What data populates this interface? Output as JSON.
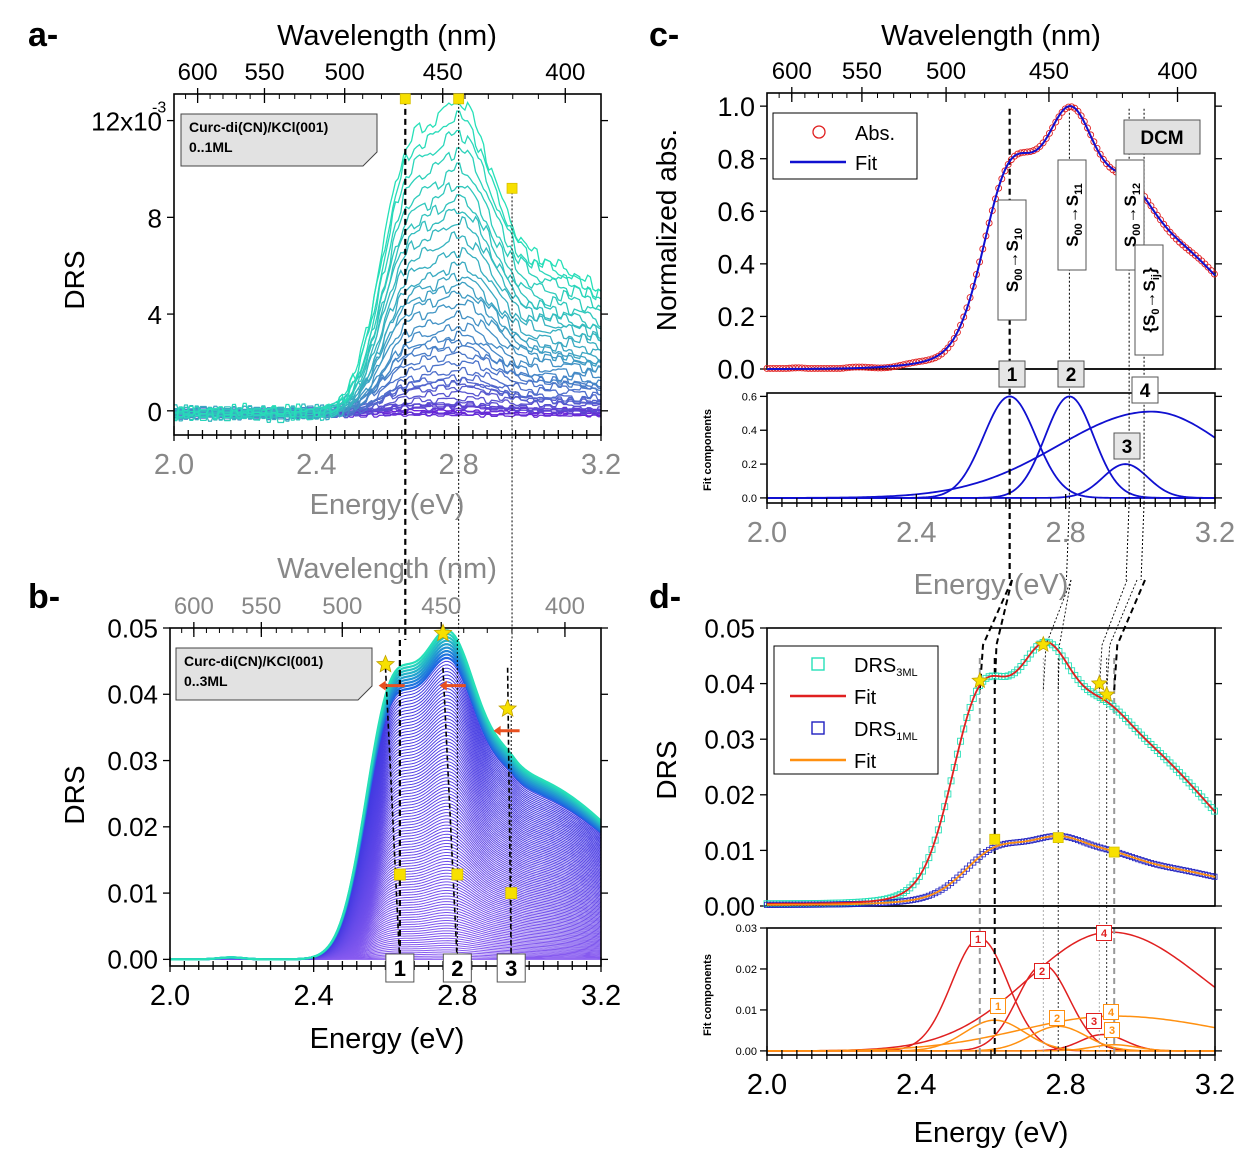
{
  "chart_data": [
    {
      "panel": "a",
      "panel_label": "a-",
      "type": "line",
      "top_axis": {
        "label": "Wavelength (nm)",
        "ticks": [
          600,
          550,
          500,
          450,
          400
        ]
      },
      "xlabel": "Energy (eV)",
      "ylabel": "DRS",
      "xlim": [
        2.0,
        3.2
      ],
      "ylim": [
        -0.001,
        0.0131
      ],
      "xticks": [
        "2.0",
        "2.4",
        "2.8",
        "3.2"
      ],
      "yticks": [
        {
          "v": 0,
          "label": "0"
        },
        {
          "v": 0.004,
          "label": "4"
        },
        {
          "v": 0.008,
          "label": "8"
        },
        {
          "v": 0.012,
          "label": "12x10"
        }
      ],
      "y_exponent": "-3",
      "legend_box": {
        "line1": "Curc-di(CN)/KCl(001)",
        "line2": "0..1ML"
      },
      "series_count": 40,
      "top_curve_peaks": [
        {
          "x": 2.65,
          "y": 0.0129
        },
        {
          "x": 2.8,
          "y": 0.0129
        },
        {
          "x": 2.95,
          "y": 0.0092
        }
      ],
      "marker_color": "#f7e000",
      "colors": {
        "low": "#6a1fd8",
        "high": "#26e0b8"
      }
    },
    {
      "panel": "b",
      "panel_label": "b-",
      "type": "line",
      "top_axis": {
        "label": "Wavelength (nm)",
        "ticks": [
          600,
          550,
          500,
          450,
          400
        ]
      },
      "xlabel": "Energy (eV)",
      "ylabel": "DRS",
      "xlim": [
        2.0,
        3.2
      ],
      "ylim": [
        -0.001,
        0.05
      ],
      "xticks": [
        "2.0",
        "2.4",
        "2.8",
        "3.2"
      ],
      "yticks": [
        "0.00",
        "0.01",
        "0.02",
        "0.03",
        "0.04",
        "0.05"
      ],
      "legend_box": {
        "line1": "Curc-di(CN)/KCl(001)",
        "line2": "0..3ML"
      },
      "series_count": 110,
      "stars": [
        {
          "x": 2.6,
          "y": 0.0445
        },
        {
          "x": 2.76,
          "y": 0.0492
        },
        {
          "x": 2.94,
          "y": 0.0378
        }
      ],
      "square_markers": [
        {
          "x": 2.64,
          "y": 0.0128
        },
        {
          "x": 2.8,
          "y": 0.0128
        },
        {
          "x": 2.95,
          "y": 0.01
        }
      ],
      "arrows": [
        {
          "x": 2.62,
          "y": 0.0413
        },
        {
          "x": 2.79,
          "y": 0.0413
        },
        {
          "x": 2.94,
          "y": 0.0345
        }
      ],
      "transition_labels": [
        "1",
        "2",
        "3"
      ],
      "transition_x": [
        2.64,
        2.8,
        2.95
      ]
    },
    {
      "panel": "c",
      "panel_label": "c-",
      "type": "line",
      "top_axis": {
        "label": "Wavelength (nm)",
        "ticks": [
          600,
          550,
          500,
          450,
          400
        ]
      },
      "xlabel": "Energy (eV)",
      "ylabel": "Normalized abs.",
      "ylabel_lower": "Fit components",
      "xlim": [
        2.0,
        3.2
      ],
      "ylim": [
        0.0,
        1.05
      ],
      "lower_ylim": [
        -0.03,
        0.62
      ],
      "xticks": [
        "2.0",
        "2.4",
        "2.8",
        "3.2"
      ],
      "yticks": [
        "0.0",
        "0.2",
        "0.4",
        "0.6",
        "0.8",
        "1.0"
      ],
      "lower_yticks": [
        "0.0",
        "0.2",
        "0.4",
        "0.6"
      ],
      "legend": [
        "Abs.",
        "Fit"
      ],
      "solvent_tag": "DCM",
      "transitions": [
        {
          "x": 2.65,
          "main": "S",
          "sub_from": "00",
          "sub_to": "10"
        },
        {
          "x": 2.81,
          "main": "S",
          "sub_from": "00",
          "sub_to": "11"
        },
        {
          "x": 2.97,
          "main": "S",
          "sub_from": "00",
          "sub_to": "12"
        },
        {
          "x": 3.01,
          "main": "{S",
          "sub_from": "0",
          "sub_to": "ij",
          "suffix": "}"
        }
      ],
      "components": [
        {
          "label": "1",
          "center": 2.65,
          "amp": 0.6,
          "width": 0.07
        },
        {
          "label": "2",
          "center": 2.81,
          "amp": 0.6,
          "width": 0.065
        },
        {
          "label": "3",
          "center": 2.96,
          "amp": 0.2,
          "width": 0.06
        },
        {
          "label": "4",
          "center": 3.03,
          "amp": 0.51,
          "width_left": 0.25,
          "width_right": 0.2
        }
      ],
      "colors": {
        "abs": "#e02020",
        "fit": "#1010d0"
      }
    },
    {
      "panel": "d",
      "panel_label": "d-",
      "type": "line",
      "xlabel": "Energy (eV)",
      "ylabel": "DRS",
      "ylabel_lower": "Fit components",
      "xlim": [
        2.0,
        3.2
      ],
      "ylim": [
        0.0,
        0.05
      ],
      "lower_ylim": [
        -0.001,
        0.03
      ],
      "xticks": [
        "2.0",
        "2.4",
        "2.8",
        "3.2"
      ],
      "yticks": [
        "0.00",
        "0.01",
        "0.02",
        "0.03",
        "0.04",
        "0.05"
      ],
      "lower_yticks": [
        "0.00",
        "0.01",
        "0.02",
        "0.03"
      ],
      "series": [
        {
          "name": "DRS",
          "name_sub": "3ML",
          "marker": "open-square",
          "color": "#26e0b8"
        },
        {
          "name": "Fit",
          "color": "#e02020"
        },
        {
          "name": "DRS",
          "name_sub": "1ML",
          "marker": "open-square",
          "color": "#2020c0"
        },
        {
          "name": "Fit",
          "color": "#ff9010"
        }
      ],
      "stars": [
        {
          "x": 2.57,
          "y": 0.0405
        },
        {
          "x": 2.74,
          "y": 0.047
        },
        {
          "x": 2.89,
          "y": 0.04
        },
        {
          "x": 2.91,
          "y": 0.038
        }
      ],
      "square_markers": [
        {
          "x": 2.61,
          "y": 0.012
        },
        {
          "x": 2.78,
          "y": 0.0123
        },
        {
          "x": 2.93,
          "y": 0.0097
        }
      ],
      "components_3ML": [
        {
          "label": "1",
          "center": 2.57,
          "amp": 0.0275,
          "width": 0.075
        },
        {
          "label": "2",
          "center": 2.74,
          "amp": 0.021,
          "width": 0.07
        },
        {
          "label": "3",
          "center": 2.9,
          "amp": 0.004,
          "width": 0.06
        },
        {
          "label": "4",
          "center": 2.92,
          "amp": 0.029,
          "width_left": 0.22,
          "width_right": 0.25
        }
      ],
      "components_1ML": [
        {
          "label": "1",
          "center": 2.61,
          "amp": 0.0075,
          "width": 0.08
        },
        {
          "label": "2",
          "center": 2.78,
          "amp": 0.006,
          "width": 0.075
        },
        {
          "label": "3",
          "center": 2.93,
          "amp": 0.0015,
          "width": 0.06
        },
        {
          "label": "4",
          "center": 2.93,
          "amp": 0.0085,
          "width_left": 0.25,
          "width_right": 0.3
        }
      ]
    }
  ]
}
